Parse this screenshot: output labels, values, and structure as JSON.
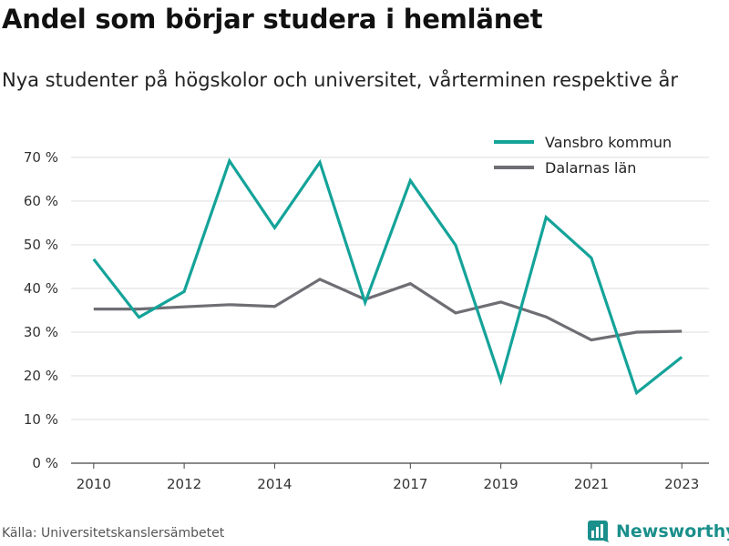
{
  "header": {
    "title": "Andel som börjar studera i hemlänet",
    "subtitle": "Nya studenter på högskolor och universitet, vårterminen respektive år"
  },
  "footer": {
    "source": "Källa: Universitetskanslersämbetet",
    "brand": "Newsworthy"
  },
  "colors": {
    "vansbro": "#14a399",
    "dalarna": "#6e6e74",
    "grid": "#dddddd",
    "axis": "#444444",
    "brand": "#1a8f8b"
  },
  "chart_data": {
    "type": "line",
    "x": [
      2010,
      2011,
      2012,
      2013,
      2014,
      2015,
      2016,
      2017,
      2018,
      2019,
      2020,
      2021,
      2022,
      2023
    ],
    "xticks": [
      2010,
      2012,
      2014,
      2017,
      2019,
      2021,
      2023
    ],
    "xlim": [
      2009.5,
      2023.6
    ],
    "ylim": [
      0,
      70
    ],
    "yticks": [
      0,
      10,
      20,
      30,
      40,
      50,
      60,
      70
    ],
    "ytick_labels": [
      "0 %",
      "10 %",
      "20 %",
      "30 %",
      "40 %",
      "50 %",
      "60 %",
      "70 %"
    ],
    "grid": true,
    "legend_position": "top-right",
    "series": [
      {
        "name": "Vansbro kommun",
        "color": "#14a399",
        "values": [
          46.7,
          33.4,
          39.3,
          69.2,
          53.9,
          68.9,
          36.8,
          64.7,
          49.9,
          18.9,
          56.3,
          47.0,
          16.1,
          24.3
        ]
      },
      {
        "name": "Dalarnas län",
        "color": "#6e6e74",
        "values": [
          35.3,
          35.3,
          35.8,
          36.3,
          35.9,
          42.1,
          37.5,
          41.1,
          34.4,
          36.9,
          33.5,
          28.2,
          30.0,
          30.2
        ]
      }
    ]
  }
}
